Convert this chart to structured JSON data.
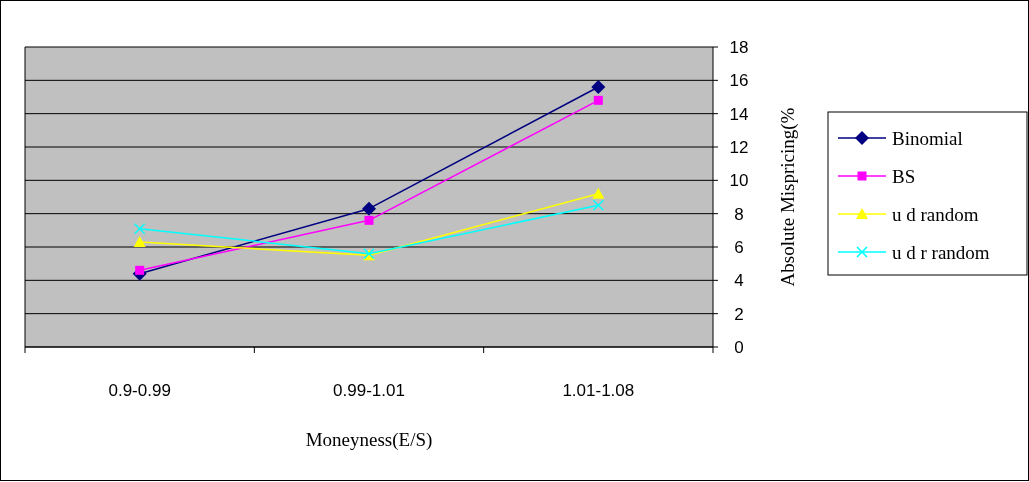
{
  "chart_data": {
    "type": "line",
    "xlabel": "Moneyness(E/S)",
    "ylabel": "Absolute Mispricing(%",
    "categories": [
      "0.9-0.99",
      "0.99-1.01",
      "1.01-1.08"
    ],
    "series": [
      {
        "name": "Binomial",
        "color": "#000080",
        "marker": "diamond",
        "values": [
          4.4,
          8.3,
          15.6
        ]
      },
      {
        "name": "BS",
        "color": "#ff00ff",
        "marker": "square",
        "values": [
          4.6,
          7.6,
          14.8
        ]
      },
      {
        "name": "u d random",
        "color": "#ffff00",
        "marker": "triangle",
        "values": [
          6.3,
          5.5,
          9.2
        ]
      },
      {
        "name": "u d r random",
        "color": "#00ffff",
        "marker": "cross",
        "values": [
          7.1,
          5.6,
          8.5
        ]
      }
    ],
    "ylim": [
      0,
      18
    ],
    "yticks": [
      0,
      2,
      4,
      6,
      8,
      10,
      12,
      14,
      16,
      18
    ],
    "grid": "y",
    "legend": "right"
  }
}
